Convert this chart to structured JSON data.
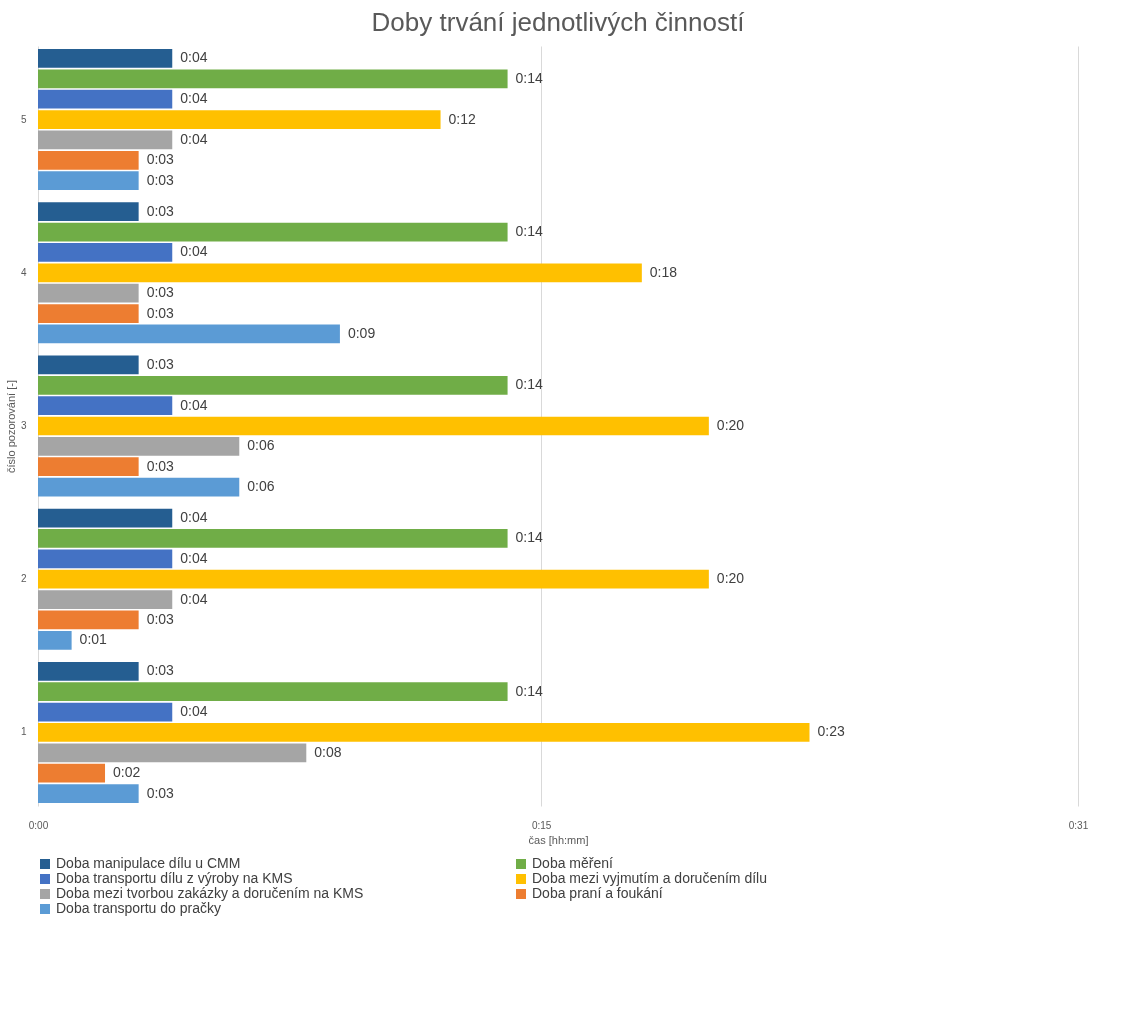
{
  "chart_data": {
    "type": "bar",
    "orientation": "horizontal",
    "title": "Doby trvání jednotlivých činností",
    "xlabel": "čas [hh:mm]",
    "ylabel": "číslo pozorování [-]",
    "categories": [
      "5",
      "4",
      "3",
      "2",
      "1"
    ],
    "xlim": [
      0,
      0.5167
    ],
    "xticks": [
      {
        "value": 0,
        "label": "0:00"
      },
      {
        "value": 0.25,
        "label": "0:15"
      },
      {
        "value": 0.5167,
        "label": "0:31"
      }
    ],
    "grid": "x",
    "legend": "bottom",
    "series": [
      {
        "name": "Doba manipulace dílu u CMM",
        "color": "#255e91",
        "values": [
          0.0667,
          0.05,
          0.05,
          0.0667,
          0.05
        ],
        "value_labels": [
          "0:04",
          "0:03",
          "0:03",
          "0:04",
          "0:03"
        ]
      },
      {
        "name": "Doba měření",
        "color": "#70ad47",
        "values": [
          0.2333,
          0.2333,
          0.2333,
          0.2333,
          0.2333
        ],
        "value_labels": [
          "0:14",
          "0:14",
          "0:14",
          "0:14",
          "0:14"
        ]
      },
      {
        "name": "Doba transportu dílu z výroby na KMS",
        "color": "#4472c4",
        "values": [
          0.0667,
          0.0667,
          0.0667,
          0.0667,
          0.0667
        ],
        "value_labels": [
          "0:04",
          "0:04",
          "0:04",
          "0:04",
          "0:04"
        ]
      },
      {
        "name": "Doba mezi vyjmutím a doručením dílu",
        "color": "#ffc000",
        "values": [
          0.2,
          0.3,
          0.3333,
          0.3333,
          0.3833
        ],
        "value_labels": [
          "0:12",
          "0:18",
          "0:20",
          "0:20",
          "0:23"
        ]
      },
      {
        "name": "Doba mezi tvorbou zakázky a doručením na KMS",
        "color": "#a5a5a5",
        "values": [
          0.0667,
          0.05,
          0.1,
          0.0667,
          0.1333
        ],
        "value_labels": [
          "0:04",
          "0:03",
          "0:06",
          "0:04",
          "0:08"
        ]
      },
      {
        "name": "Doba praní a foukání",
        "color": "#ed7d31",
        "values": [
          0.05,
          0.05,
          0.05,
          0.05,
          0.0333
        ],
        "value_labels": [
          "0:03",
          "0:03",
          "0:03",
          "0:03",
          "0:02"
        ]
      },
      {
        "name": "Doba transportu do pračky",
        "color": "#5b9bd5",
        "values": [
          0.05,
          0.15,
          0.1,
          0.0167,
          0.05
        ],
        "value_labels": [
          "0:03",
          "0:09",
          "0:06",
          "0:01",
          "0:03"
        ]
      }
    ]
  }
}
